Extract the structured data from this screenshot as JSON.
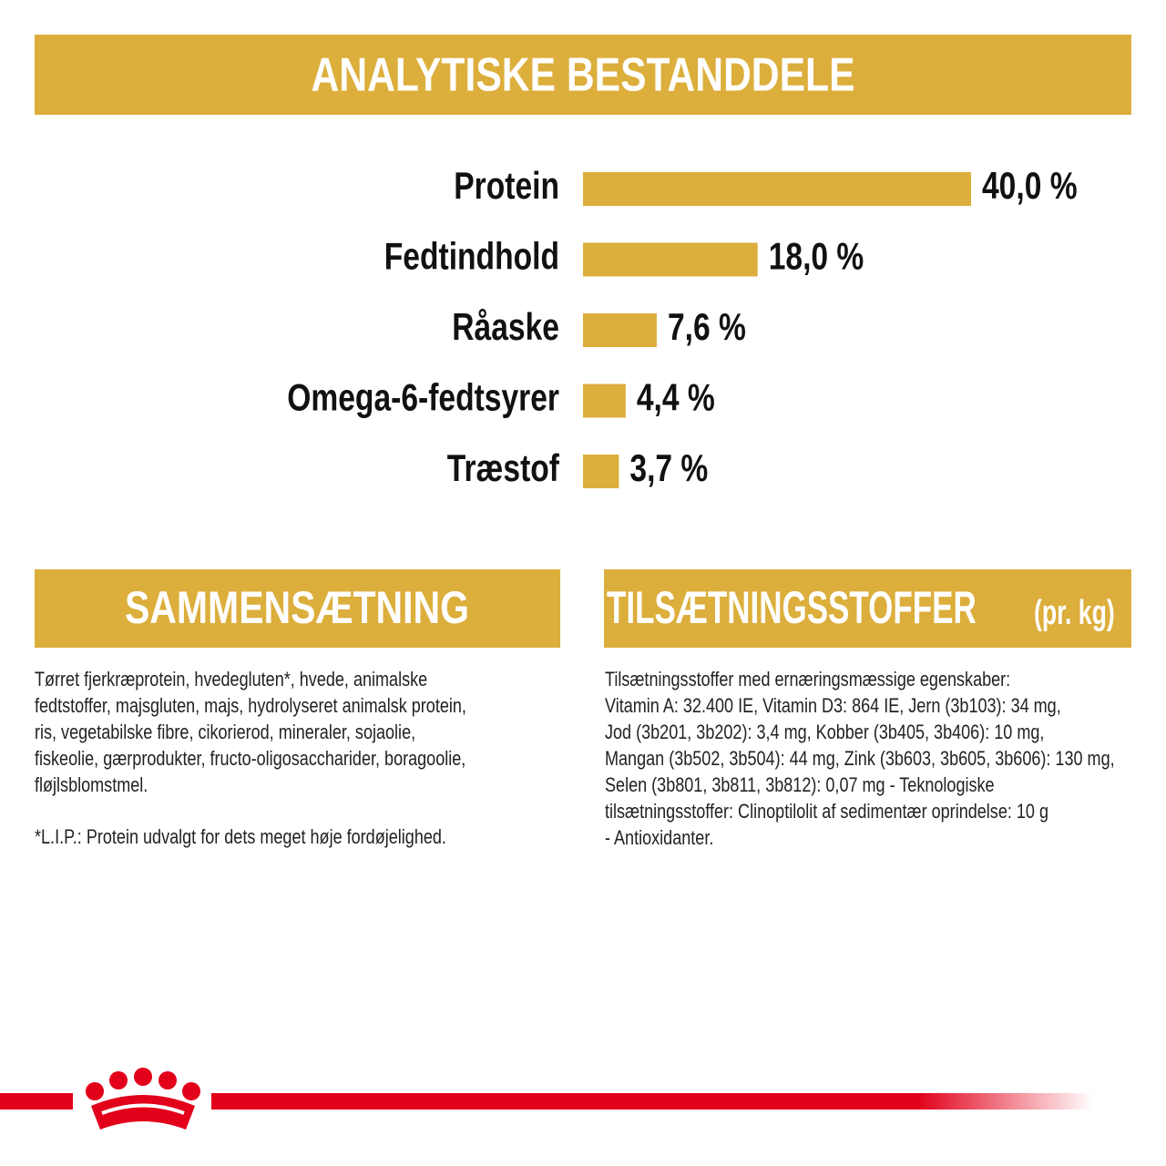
{
  "chart_data": {
    "type": "bar",
    "title": "ANALYTISKE BESTANDDELE",
    "color": "#dcae3b",
    "categories": [
      "Protein",
      "Fedtindhold",
      "Råaske",
      "Omega-6-fedtsyrer",
      "Træstof"
    ],
    "values": [
      40.0,
      18.0,
      7.6,
      4.4,
      3.7
    ],
    "value_labels": [
      "40,0 %",
      "18,0 %",
      "7,6 %",
      "4,4 %",
      "3,7 %"
    ]
  },
  "composition": {
    "title": "SAMMENSÆTNING",
    "lines": [
      "Tørret fjerkræprotein, hvedegluten*, hvede, animalske",
      "fedtstoffer, majsgluten, majs, hydrolyseret animalsk protein,",
      "ris, vegetabilske fibre, cikorierod, mineraler, sojaolie,",
      "fiskeolie, gærprodukter, fructo-oligosaccharider, boragoolie,",
      "fløjlsblomstmel."
    ],
    "note": "*L.I.P.: Protein udvalgt for dets meget høje fordøjelighed."
  },
  "additives": {
    "title": "TILSÆTNINGSSTOFFER",
    "unit": "(pr. kg)",
    "lines": [
      "Tilsætningsstoffer med ernæringsmæssige egenskaber:",
      "Vitamin A: 32.400 IE, Vitamin D3: 864 IE, Jern (3b103): 34 mg,",
      "Jod (3b201, 3b202): 3,4 mg, Kobber (3b405, 3b406): 10 mg,",
      "Mangan (3b502, 3b504): 44 mg, Zink (3b603, 3b605, 3b606): 130 mg,",
      "Selen (3b801, 3b811, 3b812): 0,07 mg - Teknologiske",
      "tilsætningsstoffer: Clinoptilolit af sedimentær oprindelse: 10 g",
      "- Antioxidanter."
    ]
  }
}
